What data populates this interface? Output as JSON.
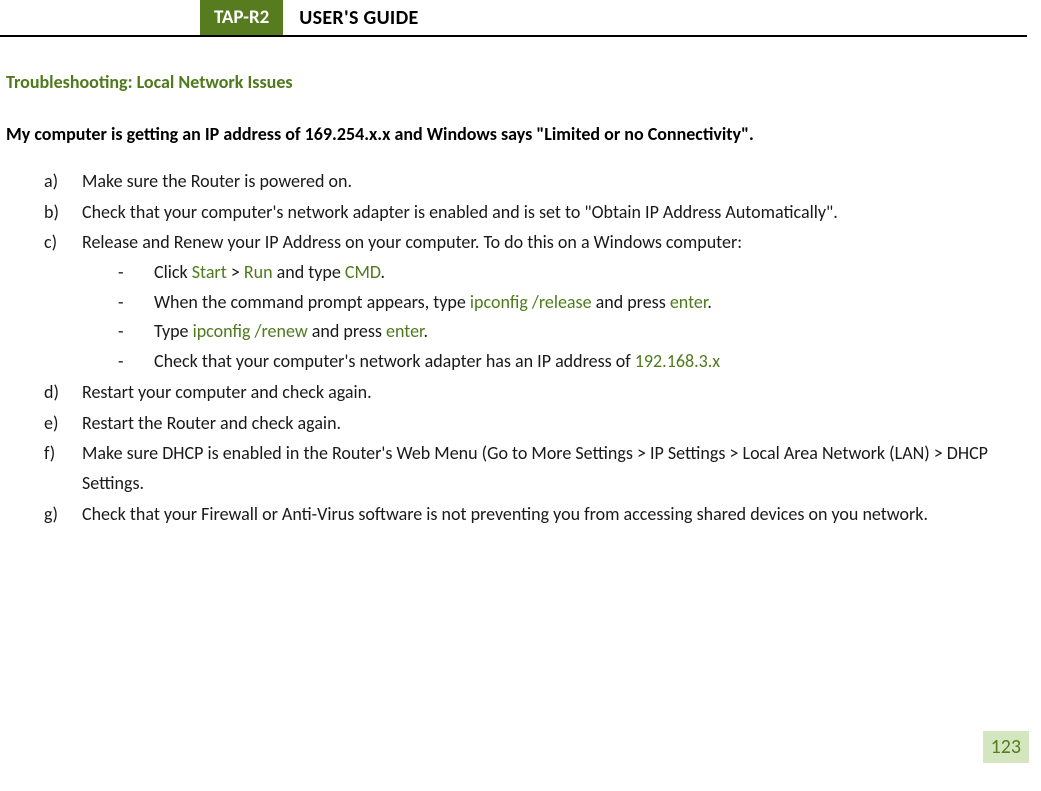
{
  "header": {
    "tab": "TAP-R2",
    "title": "USER'S GUIDE"
  },
  "section_title": "Troubleshooting: Local Network Issues",
  "subheading": "My computer is getting an IP address of 169.254.x.x and Windows says \"Limited or no Connectivity\".",
  "steps": {
    "a": "Make sure the Router is powered on.",
    "b": "Check that your computer's network adapter is enabled and is set to \"Obtain IP Address Automatically\".",
    "c_intro": "Release and Renew your IP Address on your computer.  To do this on a Windows computer:",
    "c_sub": {
      "s1_pre": "Click ",
      "s1_g1": "Start",
      "s1_mid1": " > ",
      "s1_g2": "Run",
      "s1_mid2": " and type ",
      "s1_g3": "CMD",
      "s1_end": ".",
      "s2_pre": "When the command prompt appears, type ",
      "s2_g1": "ipconfig /release",
      "s2_mid": " and press ",
      "s2_g2": "enter",
      "s2_end": ".",
      "s3_pre": "Type ",
      "s3_g1": "ipconfig /renew",
      "s3_mid": " and press ",
      "s3_g2": "enter",
      "s3_end": ".",
      "s4_pre": "Check that your computer's network adapter has an IP address of ",
      "s4_g1": "192.168.3.x"
    },
    "d": "Restart your computer and check again.",
    "e": "Restart the Router and check again.",
    "f": "Make sure DHCP is enabled in the Router's Web Menu (Go to More Settings > IP Settings > Local Area Network (LAN) > DHCP Settings.",
    "g": "Check that your Firewall or Anti-Virus software is not preventing you from accessing shared devices on you network."
  },
  "markers": {
    "a": "a)",
    "b": "b)",
    "c": "c)",
    "d": "d)",
    "e": "e)",
    "f": "f)",
    "g": "g)",
    "dash": "-"
  },
  "page_number": "123",
  "colors": {
    "accent_green": "#577c1f",
    "text_green": "#4e7a1c",
    "page_box_bg": "#d4e6bf"
  }
}
